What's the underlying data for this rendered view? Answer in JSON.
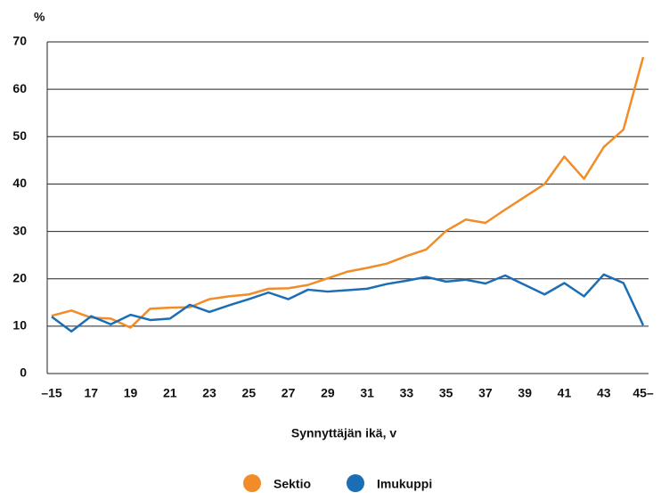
{
  "chart_data": {
    "type": "line",
    "y_unit": "%",
    "x_label": "Synnyttäjän ikä, v",
    "categories": [
      "–15",
      null,
      "17",
      null,
      "19",
      null,
      "21",
      null,
      "23",
      null,
      "25",
      null,
      "27",
      null,
      "29",
      null,
      "31",
      null,
      "33",
      null,
      "35",
      null,
      "37",
      null,
      "39",
      null,
      "41",
      null,
      "43",
      null,
      "45–"
    ],
    "series": [
      {
        "name": "Sektio",
        "color": "#f28c28",
        "values": [
          12.2,
          13.3,
          11.8,
          11.6,
          9.7,
          13.7,
          13.9,
          14.0,
          15.7,
          16.3,
          16.7,
          17.9,
          18.0,
          18.7,
          20.1,
          21.5,
          22.3,
          23.2,
          24.8,
          26.2,
          30.1,
          32.5,
          31.8,
          34.6,
          37.3,
          40.0,
          45.8,
          41.1,
          47.8,
          51.5,
          66.8
        ]
      },
      {
        "name": "Imukuppi",
        "color": "#1b6eb5",
        "values": [
          12.0,
          8.9,
          12.1,
          10.4,
          12.4,
          11.3,
          11.6,
          14.5,
          13.0,
          14.4,
          15.7,
          17.1,
          15.7,
          17.7,
          17.3,
          17.6,
          17.9,
          18.9,
          19.6,
          20.4,
          19.4,
          19.8,
          19.0,
          20.7,
          18.7,
          16.7,
          19.1,
          16.3,
          20.9,
          19.1,
          10.2
        ]
      }
    ],
    "ylim": [
      0,
      70
    ],
    "yticks": [
      0,
      10,
      20,
      30,
      40,
      50,
      60,
      70
    ],
    "grid": true,
    "legend": "bottom"
  }
}
